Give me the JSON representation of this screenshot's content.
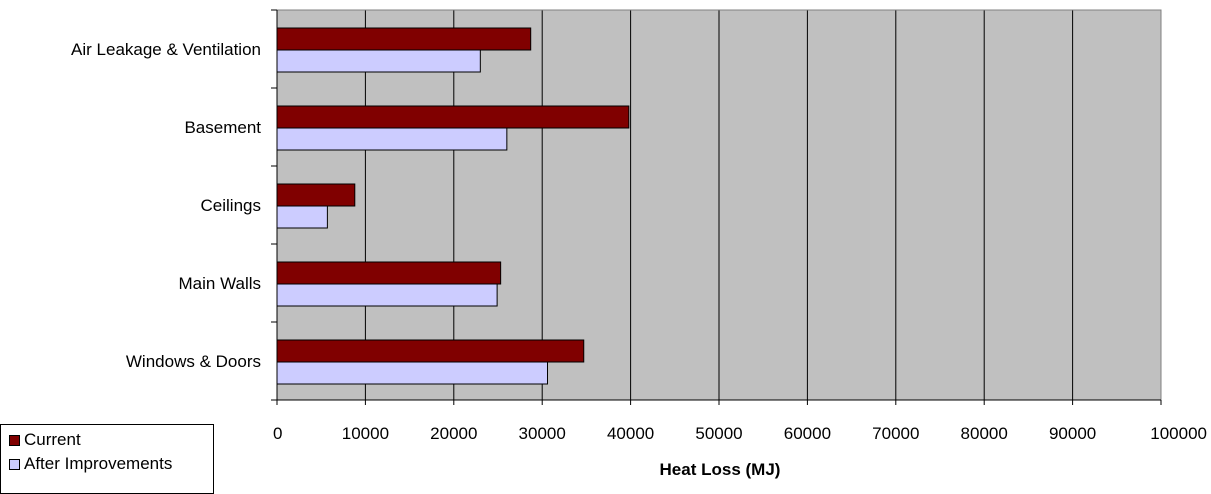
{
  "chart_data": {
    "type": "bar",
    "orientation": "horizontal",
    "title": "",
    "xlabel": "Heat Loss (MJ)",
    "ylabel": "",
    "xlim": [
      0,
      100000
    ],
    "xticks": [
      "0",
      "10000",
      "20000",
      "30000",
      "40000",
      "50000",
      "60000",
      "70000",
      "80000",
      "90000",
      "100000"
    ],
    "grid": true,
    "plot_background": "#c0c0c0",
    "categories": [
      "Air Leakage & Ventilation",
      "Basement",
      "Ceilings",
      "Main Walls",
      "Windows & Doors"
    ],
    "series": [
      {
        "name": "Current",
        "color": "#800000",
        "values": [
          28700,
          39800,
          8800,
          25300,
          34700
        ]
      },
      {
        "name": "After Improvements",
        "color": "#ccccff",
        "values": [
          23000,
          26000,
          5700,
          24900,
          30600
        ]
      }
    ],
    "legend_position": "bottom-left"
  }
}
